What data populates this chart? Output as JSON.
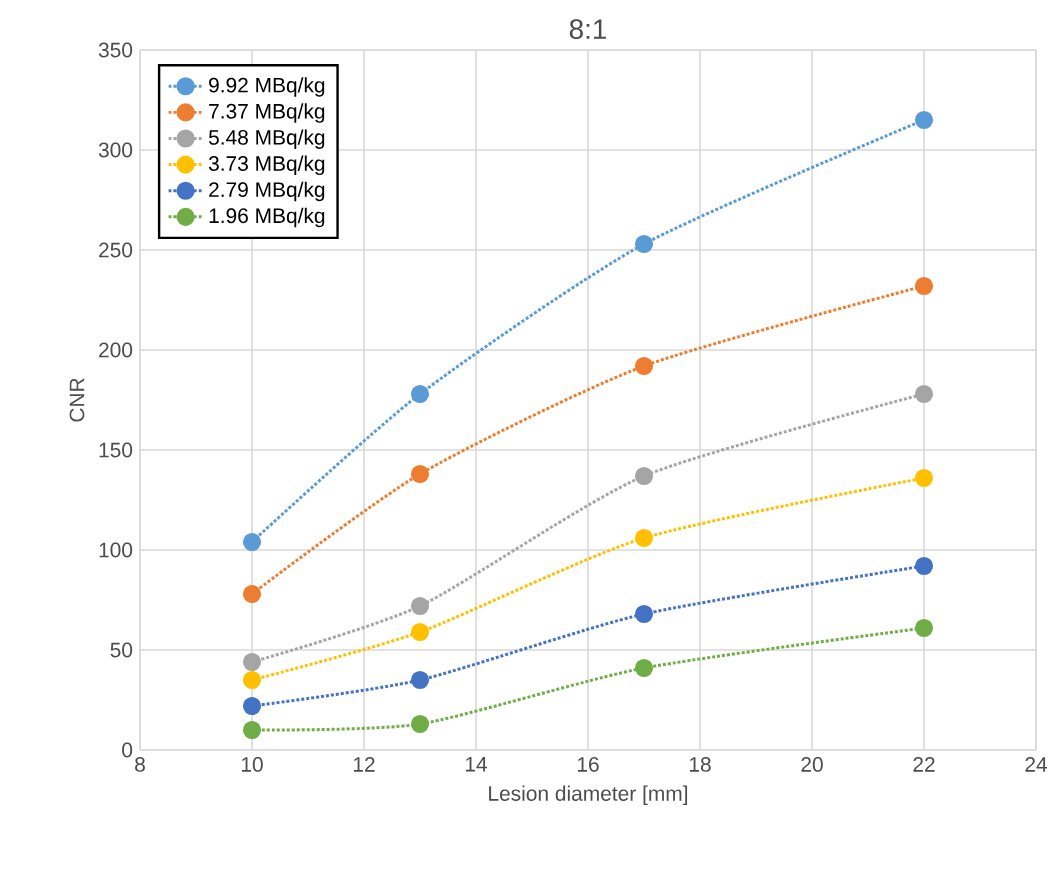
{
  "chart_data": {
    "type": "line",
    "title": "8:1",
    "xlabel": "Lesion diameter [mm]",
    "ylabel": "CNR",
    "x": [
      10,
      13,
      17,
      22
    ],
    "series": [
      {
        "name": "9.92 MBq/kg",
        "color": "#5b9bd5",
        "values": [
          104,
          178,
          253,
          315
        ]
      },
      {
        "name": "7.37 MBq/kg",
        "color": "#ed7d31",
        "values": [
          78,
          138,
          192,
          232
        ]
      },
      {
        "name": "5.48 MBq/kg",
        "color": "#a5a5a5",
        "values": [
          44,
          72,
          137,
          178
        ]
      },
      {
        "name": "3.73 MBq/kg",
        "color": "#ffc000",
        "values": [
          35,
          59,
          106,
          136
        ]
      },
      {
        "name": "2.79 MBq/kg",
        "color": "#4472c4",
        "values": [
          22,
          35,
          68,
          92
        ]
      },
      {
        "name": "1.96 MBq/kg",
        "color": "#70ad47",
        "values": [
          10,
          13,
          41,
          61
        ]
      }
    ],
    "xlim": [
      8,
      24
    ],
    "xticks": [
      8,
      10,
      12,
      14,
      16,
      18,
      20,
      22,
      24
    ],
    "ylim": [
      0,
      350
    ],
    "yticks": [
      0,
      50,
      100,
      150,
      200,
      250,
      300,
      350
    ],
    "grid": true,
    "legend": "top left",
    "marker": "circle",
    "line_style": "dotted"
  }
}
